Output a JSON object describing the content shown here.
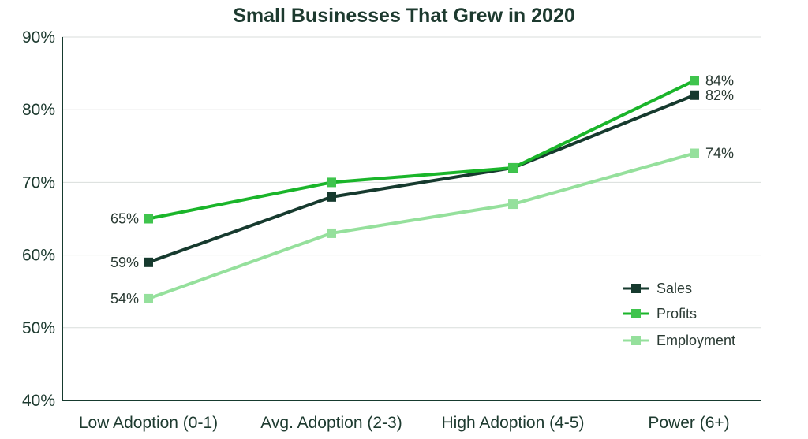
{
  "chart_data": {
    "type": "line",
    "title": "Small Businesses That Grew in 2020",
    "xlabel": "",
    "ylabel": "",
    "categories": [
      "Low Adoption (0-1)",
      "Avg. Adoption (2-3)",
      "High Adoption (4-5)",
      "Power (6+)"
    ],
    "ylim": [
      40,
      90
    ],
    "yticks": [
      40,
      50,
      60,
      70,
      80,
      90
    ],
    "ytick_labels": [
      "40%",
      "50%",
      "60%",
      "70%",
      "80%",
      "90%"
    ],
    "grid": true,
    "legend_position": "bottom-right",
    "series": [
      {
        "name": "Sales",
        "color": "#163a2e",
        "values": [
          59,
          68,
          72,
          82
        ]
      },
      {
        "name": "Profits",
        "color": "#1ab52a",
        "values": [
          65,
          70,
          72,
          84
        ]
      },
      {
        "name": "Employment",
        "color": "#95e09c",
        "values": [
          54,
          63,
          67,
          74
        ]
      }
    ],
    "data_labels": [
      {
        "series": "Profits",
        "index": 0,
        "text": "65%",
        "side": "left"
      },
      {
        "series": "Sales",
        "index": 0,
        "text": "59%",
        "side": "left"
      },
      {
        "series": "Employment",
        "index": 0,
        "text": "54%",
        "side": "left"
      },
      {
        "series": "Profits",
        "index": 3,
        "text": "84%",
        "side": "right"
      },
      {
        "series": "Sales",
        "index": 3,
        "text": "82%",
        "side": "right"
      },
      {
        "series": "Employment",
        "index": 3,
        "text": "74%",
        "side": "right"
      }
    ]
  }
}
